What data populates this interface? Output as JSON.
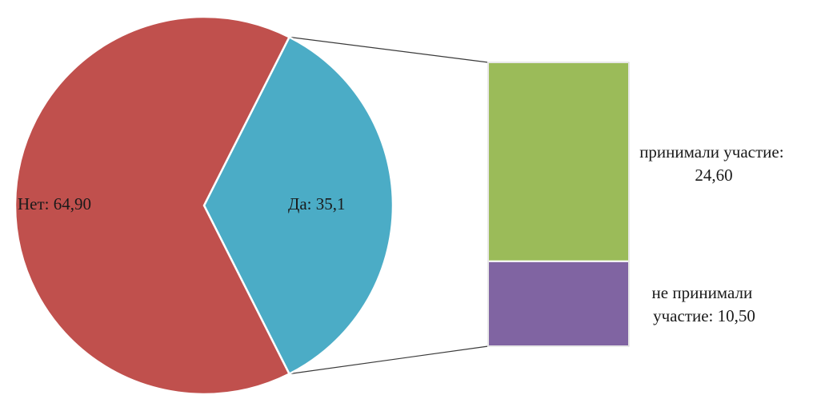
{
  "chart_data": {
    "type": "pie",
    "subtype": "bar-of-pie",
    "slices": [
      {
        "label": "Нет",
        "value": 64.9,
        "text": "Нет: 64,90",
        "color": "#c0504d"
      },
      {
        "label": "Да",
        "value": 35.1,
        "text": "Да: 35,1",
        "color": "#4bacc6"
      }
    ],
    "breakdown_of": "Да",
    "breakdown": [
      {
        "label": "принимали участие",
        "value": 24.6,
        "text_lines": [
          "принимали участие:",
          "24,60"
        ],
        "color": "#9bbb59"
      },
      {
        "label": "не принимали участие",
        "value": 10.5,
        "text_lines": [
          "не принимали",
          "участие: 10,50"
        ],
        "color": "#8064a2"
      }
    ],
    "legend": "none"
  }
}
